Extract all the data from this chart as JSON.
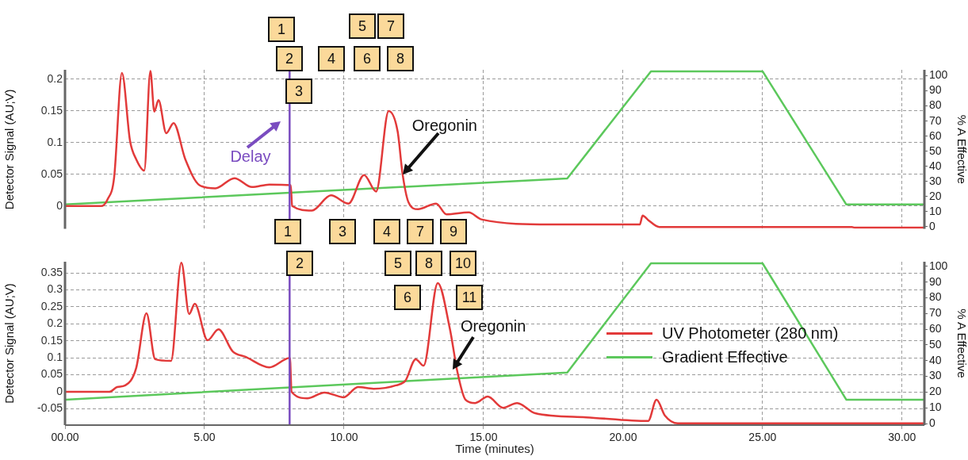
{
  "chart_data": [
    {
      "type": "line",
      "ylabel": "Detector Signal (AU;V)",
      "y2label": "% A Effective",
      "xlim": [
        0,
        30.8
      ],
      "xticks": [
        {
          "value": 0,
          "label": null
        },
        {
          "value": 5,
          "label": null
        },
        {
          "value": 10,
          "label": null
        },
        {
          "value": 15,
          "label": null
        },
        {
          "value": 20,
          "label": null
        },
        {
          "value": 25,
          "label": null
        },
        {
          "value": 30,
          "label": null
        }
      ],
      "ylim": [
        -0.036,
        0.215
      ],
      "yticks": [
        0,
        0.05,
        0.1,
        0.15,
        0.2
      ],
      "y2lim": [
        -1.5,
        104
      ],
      "y2ticks": [
        0,
        10,
        20,
        30,
        40,
        50,
        60,
        70,
        80,
        90,
        100
      ],
      "tick_labels": "y",
      "grid": true,
      "marker": "none",
      "series": [
        {
          "color": "#e23a3a",
          "x": [
            0,
            1.3,
            1.53,
            1.76,
            2.04,
            2.33,
            2.55,
            2.84,
            3.06,
            3.2,
            3.35,
            3.63,
            3.89,
            4.31,
            4.82,
            5.39,
            6.07,
            6.7,
            7.32,
            8.09,
            8.14,
            8.85,
            9.53,
            10.16,
            10.72,
            11.15,
            11.6,
            11.92,
            12.1,
            12.31,
            12.65,
            13.3,
            13.67,
            14.47,
            14.92,
            17.4,
            20.6,
            20.7,
            20.9,
            21.3,
            28.2,
            28.3,
            30.8
          ],
          "values": [
            0,
            0,
            0.011,
            0.045,
            0.21,
            0.103,
            0.074,
            0.056,
            0.213,
            0.149,
            0.167,
            0.115,
            0.131,
            0.074,
            0.033,
            0.028,
            0.044,
            0.03,
            0.034,
            0.033,
            0,
            -0.007,
            0.017,
            0.004,
            0.049,
            0.023,
            0.15,
            0.118,
            0.05,
            0.006,
            -0.005,
            0.004,
            -0.013,
            -0.01,
            -0.021,
            -0.029,
            -0.029,
            -0.015,
            -0.022,
            -0.033,
            -0.033,
            -0.034,
            -0.034
          ]
        },
        {
          "color": "#5cc85c",
          "axis": "y2",
          "x": [
            0,
            18,
            21,
            25,
            28,
            30.8
          ],
          "values": [
            14.7,
            32,
            103,
            103,
            14.7,
            14.7
          ]
        }
      ],
      "ref_lines": [
        {
          "axis": "x",
          "value": 8.05,
          "label": "Delay",
          "color": "#7a4cc0"
        }
      ],
      "annotations": [
        "1",
        "2",
        "3",
        "4",
        "5",
        "6",
        "7",
        "8",
        {
          "text": "Oregonin",
          "x": 12.1,
          "y": 0.05
        }
      ]
    },
    {
      "type": "line",
      "xlabel": "Time (minutes)",
      "ylabel": "Detector Signal (AU;V)",
      "y2label": "% A Effective",
      "xlim": [
        0,
        30.8
      ],
      "xticks": [
        {
          "value": 0,
          "label": "00.00"
        },
        {
          "value": 5,
          "label": "5.00"
        },
        {
          "value": 10,
          "label": "10.00"
        },
        {
          "value": 15,
          "label": "15.00"
        },
        {
          "value": 20,
          "label": "20.00"
        },
        {
          "value": 25,
          "label": "25.00"
        },
        {
          "value": 30,
          "label": "30.00"
        }
      ],
      "ylim": [
        -0.098,
        0.383
      ],
      "yticks": [
        -0.05,
        0,
        0.05,
        0.1,
        0.15,
        0.2,
        0.25,
        0.3,
        0.35
      ],
      "y2lim": [
        -1,
        103
      ],
      "y2ticks": [
        0,
        10,
        20,
        30,
        40,
        50,
        60,
        70,
        80,
        90,
        100
      ],
      "grid": true,
      "marker": "none",
      "legend": "right",
      "series": [
        {
          "name": "UV Photometer (280 nm)",
          "color": "#e23a3a",
          "x": [
            0,
            1.59,
            1.87,
            2.16,
            2.55,
            2.92,
            3.23,
            3.8,
            4.17,
            4.45,
            4.65,
            5.11,
            5.5,
            6.01,
            6.47,
            7.32,
            8.06,
            8.12,
            8.68,
            9.3,
            9.99,
            10.5,
            11.06,
            11.86,
            12.2,
            12.57,
            12.85,
            13.36,
            13.79,
            14.07,
            14.35,
            14.7,
            15.15,
            15.7,
            16.2,
            16.85,
            18.67,
            20.9,
            21.2,
            21.5,
            21.96,
            30.8
          ],
          "values": [
            0,
            0,
            0.014,
            0.019,
            0.07,
            0.231,
            0.096,
            0.091,
            0.38,
            0.229,
            0.259,
            0.152,
            0.184,
            0.119,
            0.103,
            0.072,
            0.1,
            0,
            -0.019,
            -0.002,
            -0.016,
            0.014,
            0.009,
            0.019,
            0.033,
            0.096,
            0.077,
            0.32,
            0.187,
            0.056,
            -0.023,
            -0.033,
            -0.014,
            -0.047,
            -0.033,
            -0.063,
            -0.075,
            -0.086,
            -0.023,
            -0.07,
            -0.093,
            -0.093
          ]
        },
        {
          "name": "Gradient Effective",
          "color": "#5cc85c",
          "axis": "y2",
          "x": [
            0,
            18,
            21,
            25,
            28,
            30.8
          ],
          "values": [
            15.2,
            32.5,
            102,
            102,
            15.2,
            15.2
          ]
        }
      ],
      "ref_lines": [
        {
          "axis": "x",
          "value": 8.05,
          "color": "#7a4cc0"
        }
      ],
      "annotations": [
        "1",
        "2",
        "3",
        "4",
        "5",
        "6",
        "7",
        "8",
        "9",
        "10",
        "11",
        {
          "text": "Oregonin",
          "x": 13.9,
          "y": 0.065
        }
      ]
    }
  ]
}
